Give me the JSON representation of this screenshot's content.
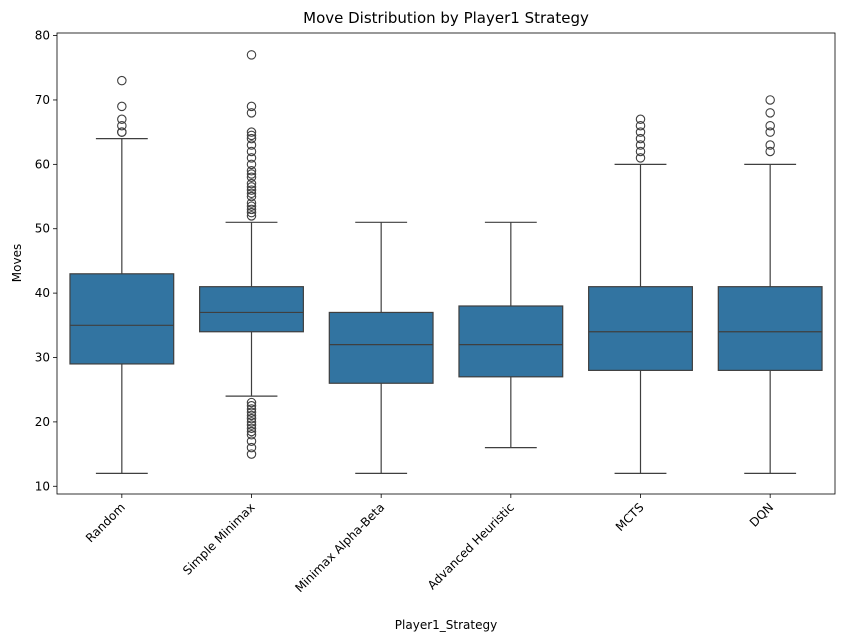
{
  "chart_data": {
    "type": "box",
    "title": "Move Distribution by Player1 Strategy",
    "xlabel": "Player1_Strategy",
    "ylabel": "Moves",
    "ylim": [
      8.8,
      80.4
    ],
    "yticks": [
      10,
      20,
      30,
      40,
      50,
      60,
      70,
      80
    ],
    "grid": false,
    "box_color": "#3274a1",
    "line_color": "#3f3f3f",
    "categories": [
      "Random",
      "Simple Minimax",
      "Minimax Alpha-Beta",
      "Advanced Heuristic",
      "MCTS",
      "DQN"
    ],
    "boxes": [
      {
        "whisker_low": 12,
        "q1": 29,
        "median": 35,
        "q3": 43,
        "whisker_high": 64,
        "outliers": [
          65,
          65,
          66,
          67,
          69,
          73
        ]
      },
      {
        "whisker_low": 24,
        "q1": 34,
        "median": 37,
        "q3": 41,
        "whisker_high": 51,
        "outliers": [
          15,
          16,
          17,
          18,
          18.5,
          19,
          19.5,
          20,
          20.5,
          21,
          21.5,
          22,
          22.5,
          23,
          52,
          52.5,
          53,
          53.5,
          54,
          55,
          55.5,
          56,
          56.5,
          57,
          58,
          58.5,
          59,
          60,
          61,
          62,
          63,
          64,
          64.5,
          65,
          68,
          69,
          77
        ]
      },
      {
        "whisker_low": 12,
        "q1": 26,
        "median": 32,
        "q3": 37,
        "whisker_high": 51,
        "outliers": []
      },
      {
        "whisker_low": 16,
        "q1": 27,
        "median": 32,
        "q3": 38,
        "whisker_high": 51,
        "outliers": []
      },
      {
        "whisker_low": 12,
        "q1": 28,
        "median": 34,
        "q3": 41,
        "whisker_high": 60,
        "outliers": [
          61,
          62,
          63,
          64,
          65,
          66,
          67
        ]
      },
      {
        "whisker_low": 12,
        "q1": 28,
        "median": 34,
        "q3": 41,
        "whisker_high": 60,
        "outliers": [
          62,
          63,
          65,
          66,
          68,
          70
        ]
      }
    ]
  }
}
